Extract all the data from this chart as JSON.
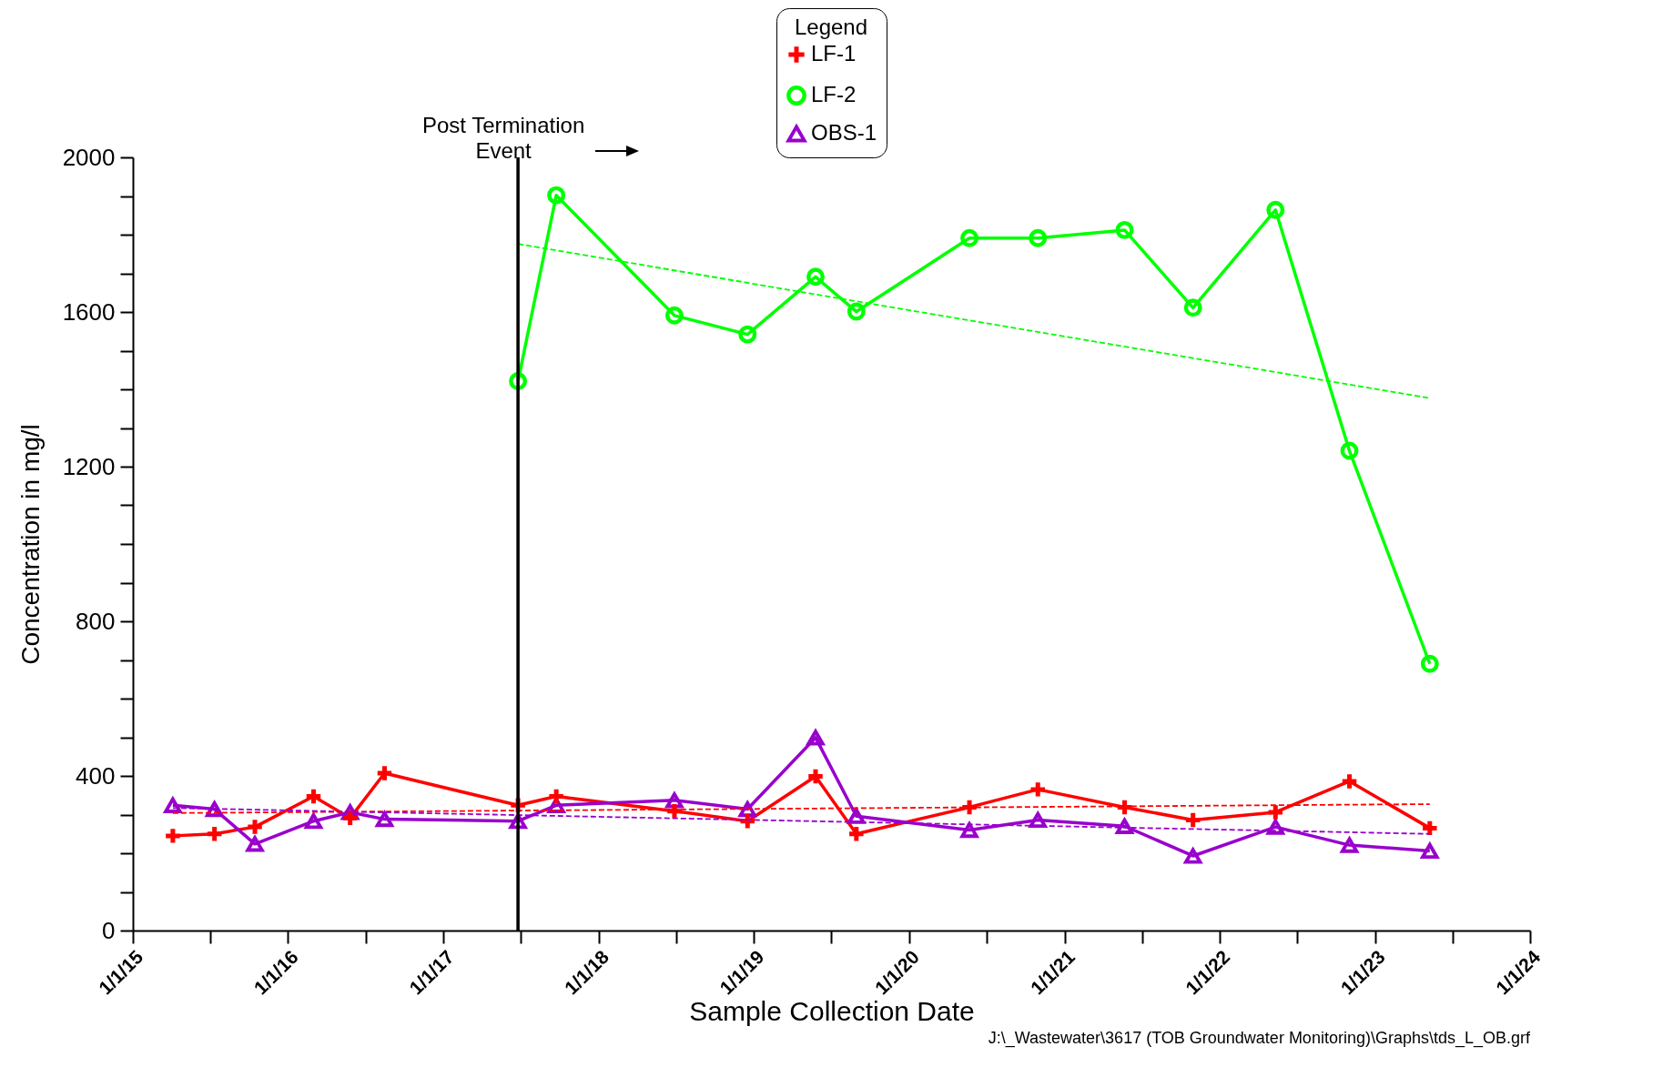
{
  "chart_data": {
    "type": "line",
    "xlabel": "Sample Collection Date",
    "ylabel": "Concentration in mg/l",
    "legend_title": "Legend",
    "legend": "top",
    "xlim": [
      "2015-01-01",
      "2024-01-01"
    ],
    "ylim": [
      0,
      2000
    ],
    "xticks": [
      {
        "value": "2015-01-01",
        "label": "1/1/15"
      },
      {
        "value": "2015-07-02",
        "label": null
      },
      {
        "value": "2016-01-01",
        "label": "1/1/16"
      },
      {
        "value": "2016-07-02",
        "label": null
      },
      {
        "value": "2017-01-01",
        "label": "1/1/17"
      },
      {
        "value": "2017-07-02",
        "label": null
      },
      {
        "value": "2018-01-01",
        "label": "1/1/18"
      },
      {
        "value": "2018-07-02",
        "label": null
      },
      {
        "value": "2019-01-01",
        "label": "1/1/19"
      },
      {
        "value": "2019-07-02",
        "label": null
      },
      {
        "value": "2020-01-01",
        "label": "1/1/20"
      },
      {
        "value": "2020-07-02",
        "label": null
      },
      {
        "value": "2021-01-01",
        "label": "1/1/21"
      },
      {
        "value": "2021-07-02",
        "label": null
      },
      {
        "value": "2022-01-01",
        "label": "1/1/22"
      },
      {
        "value": "2022-07-02",
        "label": null
      },
      {
        "value": "2023-01-01",
        "label": "1/1/23"
      },
      {
        "value": "2023-07-02",
        "label": null
      },
      {
        "value": "2024-01-01",
        "label": "1/1/24"
      }
    ],
    "yticks": [
      0,
      {
        "value": 100,
        "label": null
      },
      {
        "value": 200,
        "label": null
      },
      {
        "value": 300,
        "label": null
      },
      400,
      {
        "value": 500,
        "label": null
      },
      {
        "value": 600,
        "label": null
      },
      {
        "value": 700,
        "label": null
      },
      800,
      {
        "value": 900,
        "label": null
      },
      {
        "value": 1000,
        "label": null
      },
      {
        "value": 1100,
        "label": null
      },
      1200,
      {
        "value": 1300,
        "label": null
      },
      {
        "value": 1400,
        "label": null
      },
      {
        "value": 1500,
        "label": null
      },
      1600,
      {
        "value": 1700,
        "label": null
      },
      {
        "value": 1800,
        "label": null
      },
      {
        "value": 1900,
        "label": null
      },
      2000
    ],
    "grid": false,
    "ref_lines": [
      {
        "axis": "x",
        "value": "2017-06-25",
        "label": "Post Termination\nEvent",
        "color": "#000000"
      }
    ],
    "annotations": [
      "J:\\_Wastewater\\3617 (TOB Groundwater Monitoring)\\Graphs\\tds_L_OB.grf"
    ],
    "series": [
      {
        "name": "LF-1",
        "color": "#ff0000",
        "marker": "cross",
        "line_style": "solid",
        "x": [
          "2015-04-05",
          "2015-07-12",
          "2015-10-15",
          "2016-03-01",
          "2016-05-26",
          "2016-08-15",
          "2017-06-25",
          "2017-09-23",
          "2018-06-28",
          "2018-12-17",
          "2019-05-26",
          "2019-08-30",
          "2020-05-22",
          "2020-10-30",
          "2021-05-22",
          "2021-10-30",
          "2022-05-12",
          "2022-11-02",
          "2023-05-10"
        ],
        "values": [
          245,
          250,
          268,
          347,
          291,
          407,
          324,
          347,
          309,
          283,
          399,
          250,
          319,
          365,
          319,
          286,
          306,
          386,
          265
        ]
      },
      {
        "name": "LF-2",
        "color": "#00ff00",
        "marker": "circle",
        "line_style": "solid",
        "x": [
          "2017-06-25",
          "2017-09-23",
          "2018-06-28",
          "2018-12-17",
          "2019-05-26",
          "2019-08-30",
          "2020-05-22",
          "2020-10-30",
          "2021-05-22",
          "2021-10-30",
          "2022-05-12",
          "2022-11-02",
          "2023-05-10"
        ],
        "values": [
          1421,
          1902,
          1591,
          1542,
          1691,
          1601,
          1791,
          1791,
          1812,
          1611,
          1864,
          1241,
          690
        ]
      },
      {
        "name": "OBS-1",
        "color": "#9900cc",
        "marker": "triangle",
        "line_style": "solid",
        "x": [
          "2015-04-05",
          "2015-07-12",
          "2015-10-15",
          "2016-03-01",
          "2016-05-26",
          "2016-08-15",
          "2017-06-25",
          "2017-09-23",
          "2018-06-28",
          "2018-12-17",
          "2019-05-26",
          "2019-08-30",
          "2020-05-22",
          "2020-10-30",
          "2021-05-22",
          "2021-10-30",
          "2022-05-12",
          "2022-11-02",
          "2023-05-10"
        ],
        "values": [
          324,
          314,
          224,
          283,
          306,
          288,
          283,
          324,
          337,
          314,
          499,
          296,
          260,
          286,
          270,
          193,
          268,
          221,
          206
        ]
      },
      {
        "color": "#ff0000",
        "marker": "none",
        "line_style": "dashed",
        "x": [
          "2015-04-05",
          "2023-05-10"
        ],
        "values": [
          304,
          327
        ]
      },
      {
        "color": "#00ff00",
        "marker": "none",
        "line_style": "dashed",
        "x": [
          "2017-06-25",
          "2023-05-10"
        ],
        "values": [
          1776,
          1377
        ]
      },
      {
        "color": "#9900cc",
        "marker": "none",
        "line_style": "dashed",
        "x": [
          "2015-04-05",
          "2023-05-10"
        ],
        "values": [
          317,
          250
        ]
      }
    ]
  }
}
